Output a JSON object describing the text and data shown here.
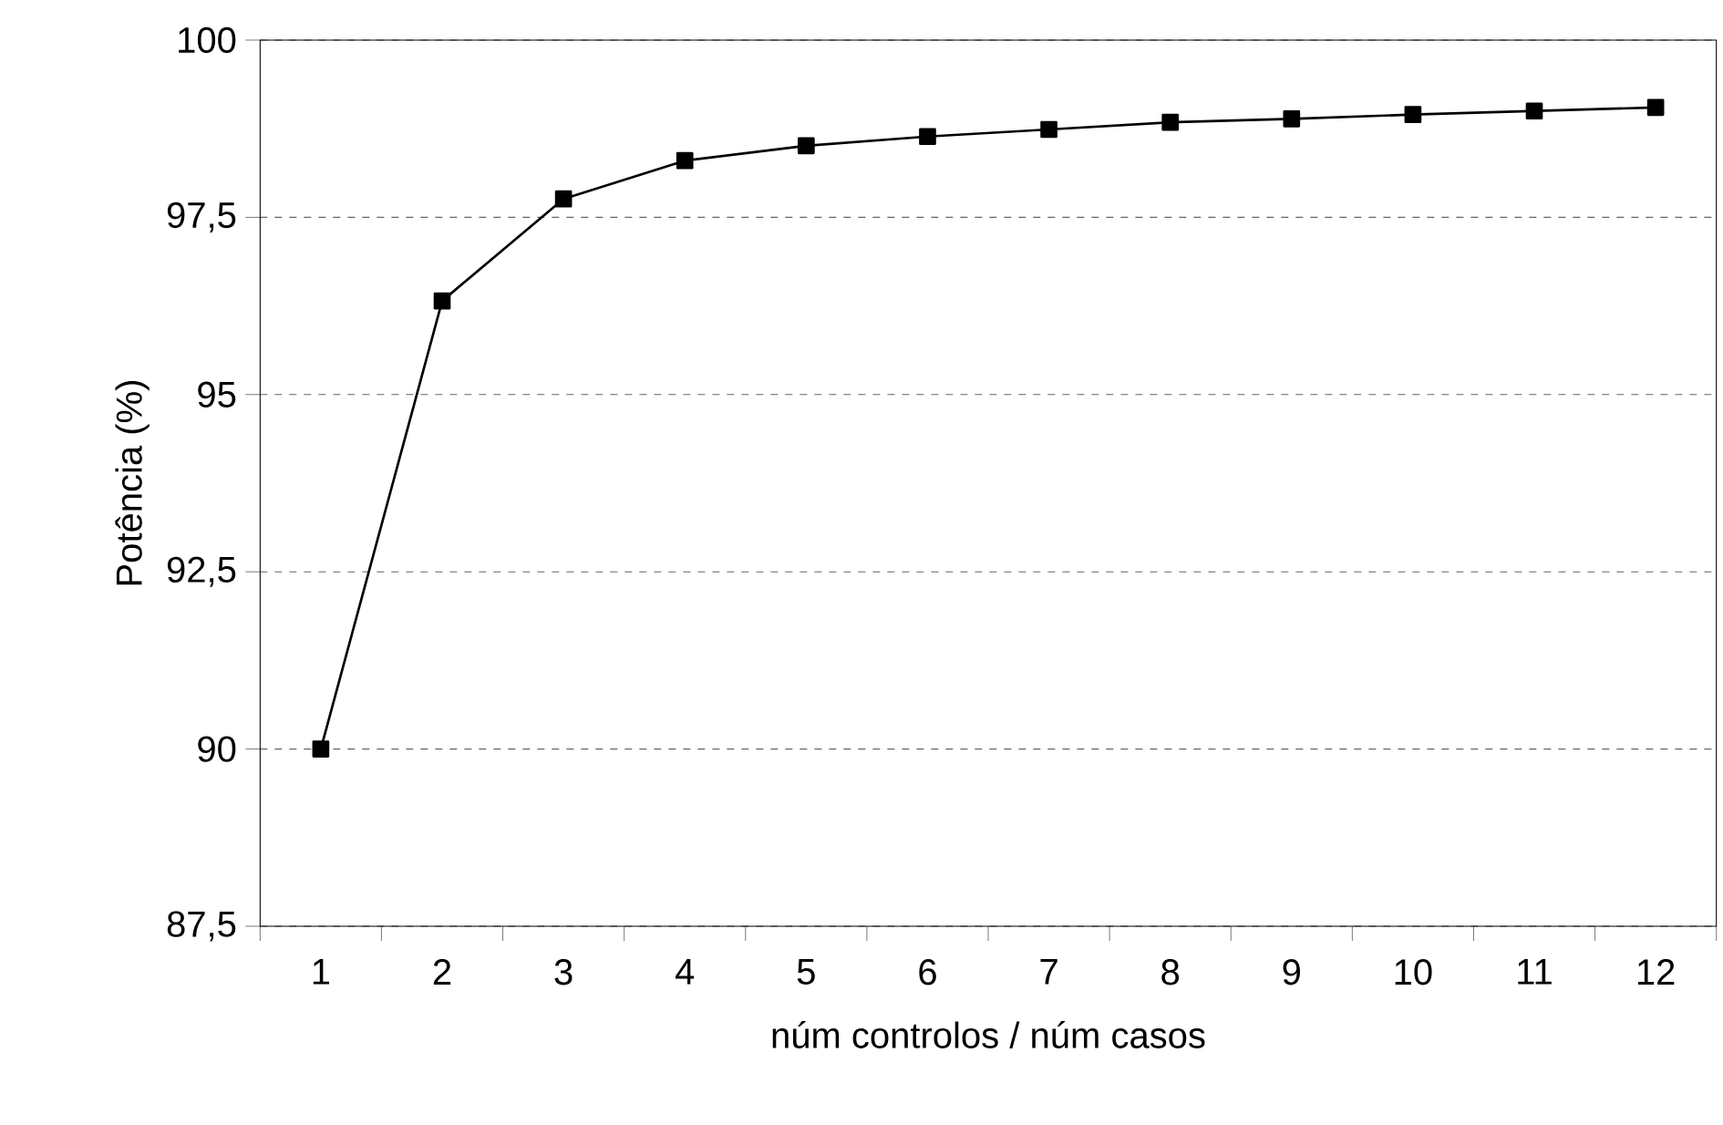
{
  "chart_data": {
    "type": "line",
    "xlabel": "núm controlos / núm casos",
    "ylabel": "Potência (%)",
    "categories": [
      "1",
      "2",
      "3",
      "4",
      "5",
      "6",
      "7",
      "8",
      "9",
      "10",
      "11",
      "12"
    ],
    "series": [
      {
        "color": "#000000",
        "values": [
          90.0,
          96.32,
          97.76,
          98.3,
          98.51,
          98.64,
          98.74,
          98.84,
          98.89,
          98.95,
          99.0,
          99.05
        ]
      }
    ],
    "ylim": [
      87.5,
      100
    ],
    "yticks": [
      {
        "value": 87.5,
        "label": "87,5"
      },
      {
        "value": 90,
        "label": "90"
      },
      {
        "value": 92.5,
        "label": "92,5"
      },
      {
        "value": 95,
        "label": "95"
      },
      {
        "value": 97.5,
        "label": "97,5"
      },
      {
        "value": 100,
        "label": "100"
      }
    ],
    "grid": "y",
    "marker": "square",
    "line_style": "solid"
  }
}
